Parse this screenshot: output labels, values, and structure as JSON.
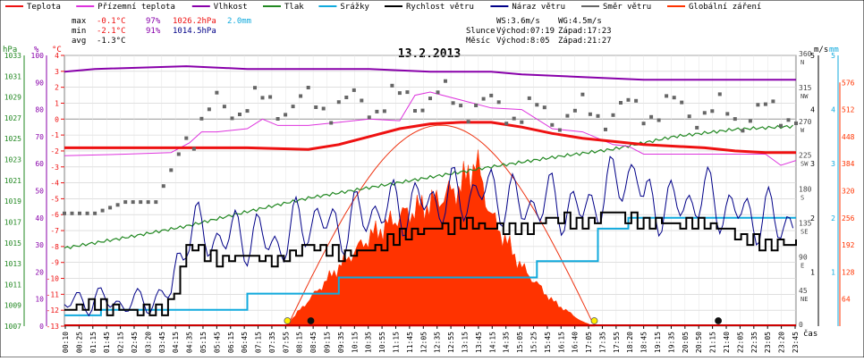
{
  "legend": [
    {
      "key": "teplota",
      "label": "Teplota",
      "color": "#ee1111"
    },
    {
      "key": "prizemni",
      "label": "Přízemní teplota",
      "color": "#dd33dd"
    },
    {
      "key": "vlhkost",
      "label": "Vlhkost",
      "color": "#8800aa"
    },
    {
      "key": "tlak",
      "label": "Tlak",
      "color": "#228822"
    },
    {
      "key": "srazky",
      "label": "Srážky",
      "color": "#11aadd"
    },
    {
      "key": "rychlost",
      "label": "Rychlost větru",
      "color": "#000000"
    },
    {
      "key": "naraz",
      "label": "Náraz větru",
      "color": "#000088"
    },
    {
      "key": "smer",
      "label": "Směr větru",
      "color": "#666666"
    },
    {
      "key": "zareni",
      "label": "Globální záření",
      "color": "#ff3300"
    }
  ],
  "stats": {
    "max_label": "max",
    "min_label": "min",
    "avg_label": "avg",
    "max_temp": "-0.1°C",
    "max_hum": "97%",
    "max_press": "1026.2hPa",
    "max_rain": "2.0mm",
    "min_temp": "-2.1°C",
    "min_hum": "91%",
    "min_press": "1014.5hPa",
    "avg_temp": "-1.3°C",
    "ws": "WS:3.6m/s",
    "wg": "WG:4.5m/s",
    "sun_label": "Slunce",
    "sun_rise": "Východ:07:19",
    "sun_set": "Západ:17:23",
    "moon_label": "Měsíc",
    "moon_rise": "Východ:8:05",
    "moon_set": "Západ:21:27"
  },
  "title": "13.2.2013",
  "axes": {
    "hpa_unit": "hPa",
    "pct_unit": "%",
    "degc_unit": "°C",
    "ms_unit": "m/s",
    "mm_unit": "mm",
    "time_unit": "čas",
    "hpa_ticks": [
      "1033",
      "1031",
      "1029",
      "1027",
      "1025",
      "1023",
      "1021",
      "1019",
      "1017",
      "1015",
      "1013",
      "1011",
      "1009",
      "1007"
    ],
    "pct_ticks": [
      "100",
      "90",
      "80",
      "70",
      "60",
      "50",
      "40",
      "30",
      "20",
      "10",
      "0"
    ],
    "degc_ticks": [
      "4",
      "3",
      "2",
      "1",
      "0",
      "-1",
      "-2",
      "-3",
      "-4",
      "-5",
      "-6",
      "-7",
      "-8",
      "-9",
      "-10",
      "-11",
      "-12",
      "-13"
    ],
    "dir_ticks": [
      {
        "deg": "360",
        "dir": "N"
      },
      {
        "deg": "315",
        "dir": "NW"
      },
      {
        "deg": "270",
        "dir": "W"
      },
      {
        "deg": "225",
        "dir": "SW"
      },
      {
        "deg": "180",
        "dir": "S"
      },
      {
        "deg": "135",
        "dir": "SE"
      },
      {
        "deg": "90",
        "dir": "E"
      },
      {
        "deg": "45",
        "dir": "NE"
      },
      {
        "deg": "0",
        "dir": ""
      }
    ],
    "ms_ticks": [
      "5",
      "4",
      "3",
      "2",
      "1"
    ],
    "mm_ticks": [
      "5",
      "4",
      "3",
      "2",
      "1"
    ],
    "rad_ticks": [
      "576",
      "512",
      "448",
      "384",
      "320",
      "256",
      "192",
      "128",
      "64"
    ],
    "time_ticks": [
      "00:10",
      "00:25",
      "01:15",
      "01:45",
      "02:15",
      "02:45",
      "03:20",
      "03:45",
      "04:15",
      "04:35",
      "05:15",
      "05:45",
      "06:15",
      "06:45",
      "07:15",
      "07:35",
      "07:55",
      "08:15",
      "08:45",
      "09:15",
      "09:35",
      "10:15",
      "10:35",
      "10:55",
      "11:15",
      "11:45",
      "12:05",
      "12:35",
      "12:55",
      "13:15",
      "13:45",
      "14:15",
      "14:35",
      "15:05",
      "15:25",
      "15:45",
      "16:15",
      "16:40",
      "17:05",
      "17:35",
      "17:55",
      "18:20",
      "18:45",
      "19:15",
      "19:35",
      "20:05",
      "20:50",
      "21:15",
      "21:40",
      "22:05",
      "22:35",
      "23:05",
      "23:20",
      "23:45"
    ]
  },
  "chart_data": {
    "type": "line",
    "title": "13.2.2013",
    "x_unit": "čas (h)",
    "series": [
      {
        "name": "Teplota",
        "unit": "°C",
        "x": [
          0,
          2,
          4,
          6,
          8,
          9,
          10,
          11,
          12,
          13,
          14,
          15,
          16,
          17,
          18,
          19,
          20,
          21,
          22,
          23,
          24
        ],
        "values": [
          -1.8,
          -1.8,
          -1.8,
          -1.8,
          -1.9,
          -1.6,
          -1.1,
          -0.6,
          -0.3,
          -0.2,
          -0.2,
          -0.5,
          -0.9,
          -1.2,
          -1.4,
          -1.6,
          -1.7,
          -1.8,
          -2.0,
          -2.1,
          -2.1
        ]
      },
      {
        "name": "Přízemní teplota",
        "unit": "°C",
        "x": [
          0,
          2,
          3.5,
          4.1,
          4.5,
          5,
          6,
          6.5,
          7,
          8,
          9,
          10,
          11,
          11.5,
          12,
          13,
          14,
          15,
          16,
          17,
          18,
          18.5,
          19,
          20,
          21,
          22,
          23,
          23.5,
          24
        ],
        "values": [
          -2.3,
          -2.2,
          -2.1,
          -1.5,
          -0.8,
          -0.8,
          -0.6,
          0,
          -0.4,
          -0.4,
          -0.2,
          0.0,
          -0.1,
          1.5,
          1.7,
          1.2,
          0.7,
          0.6,
          -0.6,
          -0.8,
          -1.6,
          -1.7,
          -2.2,
          -2.2,
          -2.2,
          -2.2,
          -2.2,
          -2.9,
          -2.6
        ]
      },
      {
        "name": "Vlhkost",
        "unit": "%",
        "x": [
          0,
          1,
          4,
          6,
          10,
          12,
          14,
          15,
          17,
          19,
          22,
          24
        ],
        "values": [
          94,
          95,
          96,
          95,
          95,
          94,
          94,
          93,
          92,
          91,
          91,
          91
        ]
      },
      {
        "name": "Tlak",
        "unit": "hPa",
        "x": [
          0,
          2,
          4,
          6,
          8,
          10,
          12,
          14,
          16,
          18,
          20,
          22,
          24
        ],
        "values": [
          1014.5,
          1015.5,
          1016.6,
          1018.0,
          1019.3,
          1020.3,
          1021.3,
          1022.3,
          1023.2,
          1024.0,
          1025.2,
          1025.9,
          1026.2
        ]
      },
      {
        "name": "Srážky",
        "unit": "mm",
        "x": [
          0,
          1.2,
          1.2,
          6,
          6,
          9,
          9,
          15.5,
          15.5,
          17.5,
          17.5,
          18.5,
          18.5,
          24
        ],
        "values": [
          0.2,
          0.2,
          0.3,
          0.3,
          0.6,
          0.6,
          0.9,
          0.9,
          1.2,
          1.2,
          1.8,
          1.8,
          2.0,
          2.0
        ]
      },
      {
        "name": "Rychlost větru",
        "unit": "m/s",
        "x": [
          0,
          1,
          1.5,
          2,
          3,
          3.5,
          4,
          5,
          6,
          7,
          8,
          9,
          10,
          11,
          12,
          13,
          14,
          15,
          16,
          17,
          18,
          19,
          20,
          21,
          22,
          23,
          24
        ],
        "values": [
          0.3,
          0.4,
          0.3,
          0.3,
          0.3,
          0.4,
          1.5,
          1.2,
          1.3,
          1.2,
          1.5,
          1.3,
          1.4,
          1.7,
          1.8,
          1.9,
          1.8,
          1.8,
          2.0,
          1.9,
          2.1,
          1.9,
          1.9,
          1.9,
          1.7,
          1.5,
          1.5
        ]
      },
      {
        "name": "Náraz větru",
        "unit": "m/s",
        "x": [
          0,
          1,
          2,
          3,
          3.5,
          4,
          5,
          6,
          7,
          8,
          9,
          10,
          11,
          12,
          13,
          14,
          15,
          16,
          17,
          18,
          18.75,
          19,
          20,
          21,
          22,
          23,
          24
        ],
        "values": [
          0.4,
          0.5,
          0.4,
          0.5,
          0.6,
          1.8,
          1.6,
          1.7,
          1.5,
          2.0,
          1.8,
          2.1,
          2.2,
          2.3,
          2.4,
          2.5,
          2.2,
          2.3,
          2.1,
          2.6,
          2.9,
          2.3,
          2.2,
          2.4,
          2.1,
          2.0,
          1.9
        ]
      },
      {
        "name": "Směr větru",
        "unit": "°",
        "x": [
          0,
          1,
          2,
          3,
          4,
          5,
          6,
          8,
          10,
          12,
          13,
          14,
          16,
          18,
          20,
          22,
          24
        ],
        "values": [
          150,
          150,
          165,
          165,
          250,
          290,
          295,
          295,
          295,
          305,
          298,
          290,
          280,
          285,
          290,
          280,
          285
        ]
      },
      {
        "name": "Globální záření",
        "unit": "W/m²",
        "x": [
          7.25,
          7.5,
          8,
          9,
          10,
          11,
          12,
          13,
          13.5,
          14,
          15,
          16,
          17,
          17.4
        ],
        "values": [
          0,
          20,
          60,
          140,
          210,
          260,
          290,
          330,
          390,
          260,
          140,
          60,
          10,
          0
        ]
      }
    ],
    "x_range": [
      0,
      24
    ],
    "ylim_temp": [
      -13,
      4
    ],
    "ylim_hpa": [
      1007,
      1033
    ],
    "ylim_pct": [
      0,
      100
    ],
    "ylim_dir": [
      0,
      360
    ],
    "ylim_ms": [
      0,
      5
    ],
    "ylim_rad": [
      0,
      640
    ]
  }
}
